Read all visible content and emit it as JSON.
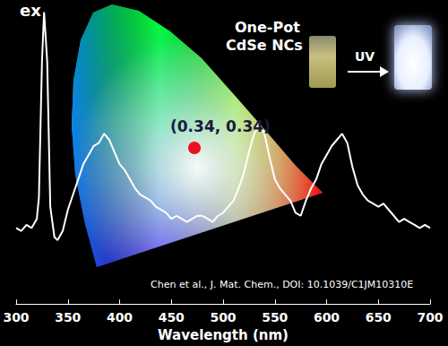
{
  "chart_data": {
    "type": "line",
    "x_label": "Wavelength (nm)",
    "annotations": [
      "ex",
      "One-Pot",
      "CdSe NCs",
      "UV",
      "(0.34, 0.34)",
      "Chen et al., J. Mat. Chem., DOI: 10.1039/C1JM10310E"
    ],
    "x": [
      300,
      305,
      310,
      315,
      320,
      322,
      325,
      327,
      330,
      333,
      337,
      340,
      345,
      350,
      355,
      360,
      365,
      370,
      375,
      380,
      385,
      390,
      395,
      400,
      405,
      410,
      415,
      420,
      425,
      430,
      435,
      440,
      445,
      450,
      455,
      460,
      465,
      470,
      475,
      480,
      485,
      490,
      495,
      500,
      505,
      510,
      515,
      520,
      525,
      530,
      535,
      540,
      545,
      550,
      555,
      560,
      565,
      570,
      575,
      580,
      585,
      590,
      595,
      600,
      605,
      610,
      615,
      620,
      625,
      630,
      635,
      640,
      645,
      650,
      655,
      660,
      665,
      670,
      675,
      680,
      685,
      690,
      695,
      700
    ],
    "values": [
      25,
      24,
      26,
      25,
      28,
      35,
      80,
      96,
      80,
      32,
      22,
      21,
      24,
      31,
      36,
      41,
      46,
      49,
      52,
      53,
      56,
      54,
      50,
      46,
      44,
      41,
      38,
      36,
      35,
      34,
      32,
      31,
      30,
      28,
      29,
      28,
      27,
      28,
      29,
      29,
      28,
      27,
      29,
      30,
      32,
      34,
      38,
      43,
      50,
      56,
      59,
      56,
      48,
      41,
      38,
      36,
      34,
      30,
      29,
      34,
      38,
      41,
      46,
      49,
      52,
      54,
      56,
      53,
      45,
      39,
      36,
      34,
      33,
      32,
      33,
      31,
      29,
      27,
      28,
      27,
      26,
      25,
      26,
      25
    ],
    "color": "#ffffff",
    "xlim": [
      300,
      700
    ],
    "xticks": [
      300,
      350,
      400,
      450,
      500,
      550,
      600,
      650,
      700
    ],
    "ylim": [
      0,
      100
    ],
    "tick_labels": "x",
    "grid": false
  }
}
